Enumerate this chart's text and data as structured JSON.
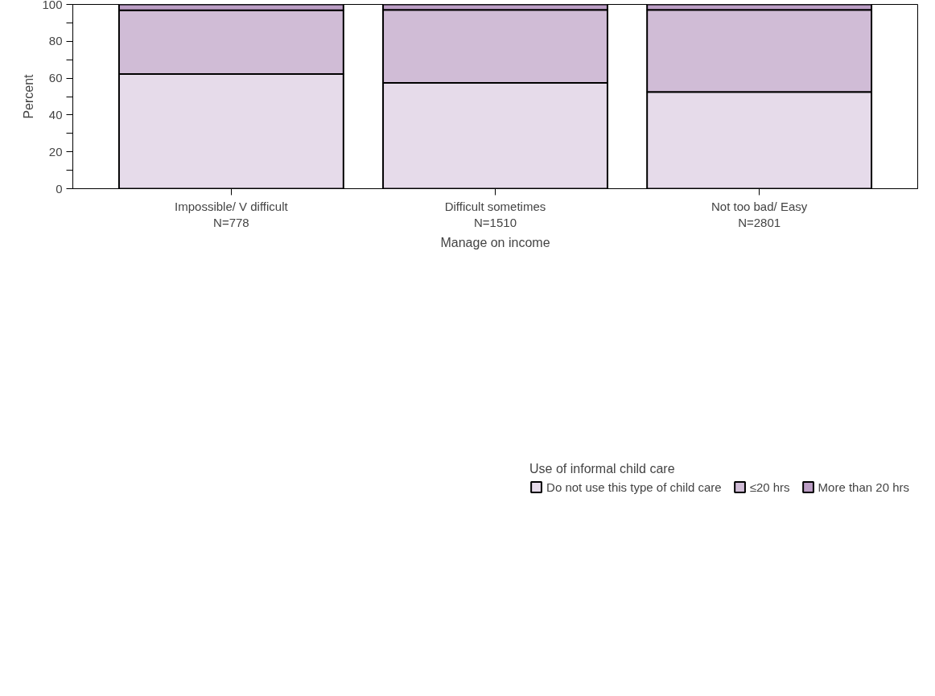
{
  "chart_data": {
    "type": "bar",
    "stacked": true,
    "xlabel": "Manage on income",
    "ylabel": "Percent",
    "legend_title": "Use of informal child care",
    "categories": [
      "Impossible/ V difficult\nN=778",
      "Difficult sometimes\nN=1510",
      "Not too bad/ Easy\nN=2801"
    ],
    "series": [
      {
        "name": "Do not use this type of child care",
        "color": "#e6dbea",
        "values": [
          62.2,
          57.4,
          52.5
        ]
      },
      {
        "name": "≤20 hrs",
        "color": "#d0bcd6",
        "values": [
          34.6,
          39.6,
          44.5
        ]
      },
      {
        "name": "More than 20 hrs",
        "color": "#bb9dc4",
        "values": [
          3.2,
          3.0,
          3.0
        ]
      }
    ],
    "ylim": [
      0,
      100
    ],
    "yticks": [
      0,
      {
        "value": 10,
        "label": null
      },
      20,
      {
        "value": 30,
        "label": null
      },
      40,
      {
        "value": 50,
        "label": null
      },
      60,
      {
        "value": 70,
        "label": null
      },
      80,
      {
        "value": 90,
        "label": null
      },
      100
    ],
    "grid": false,
    "legend": "bottom"
  }
}
